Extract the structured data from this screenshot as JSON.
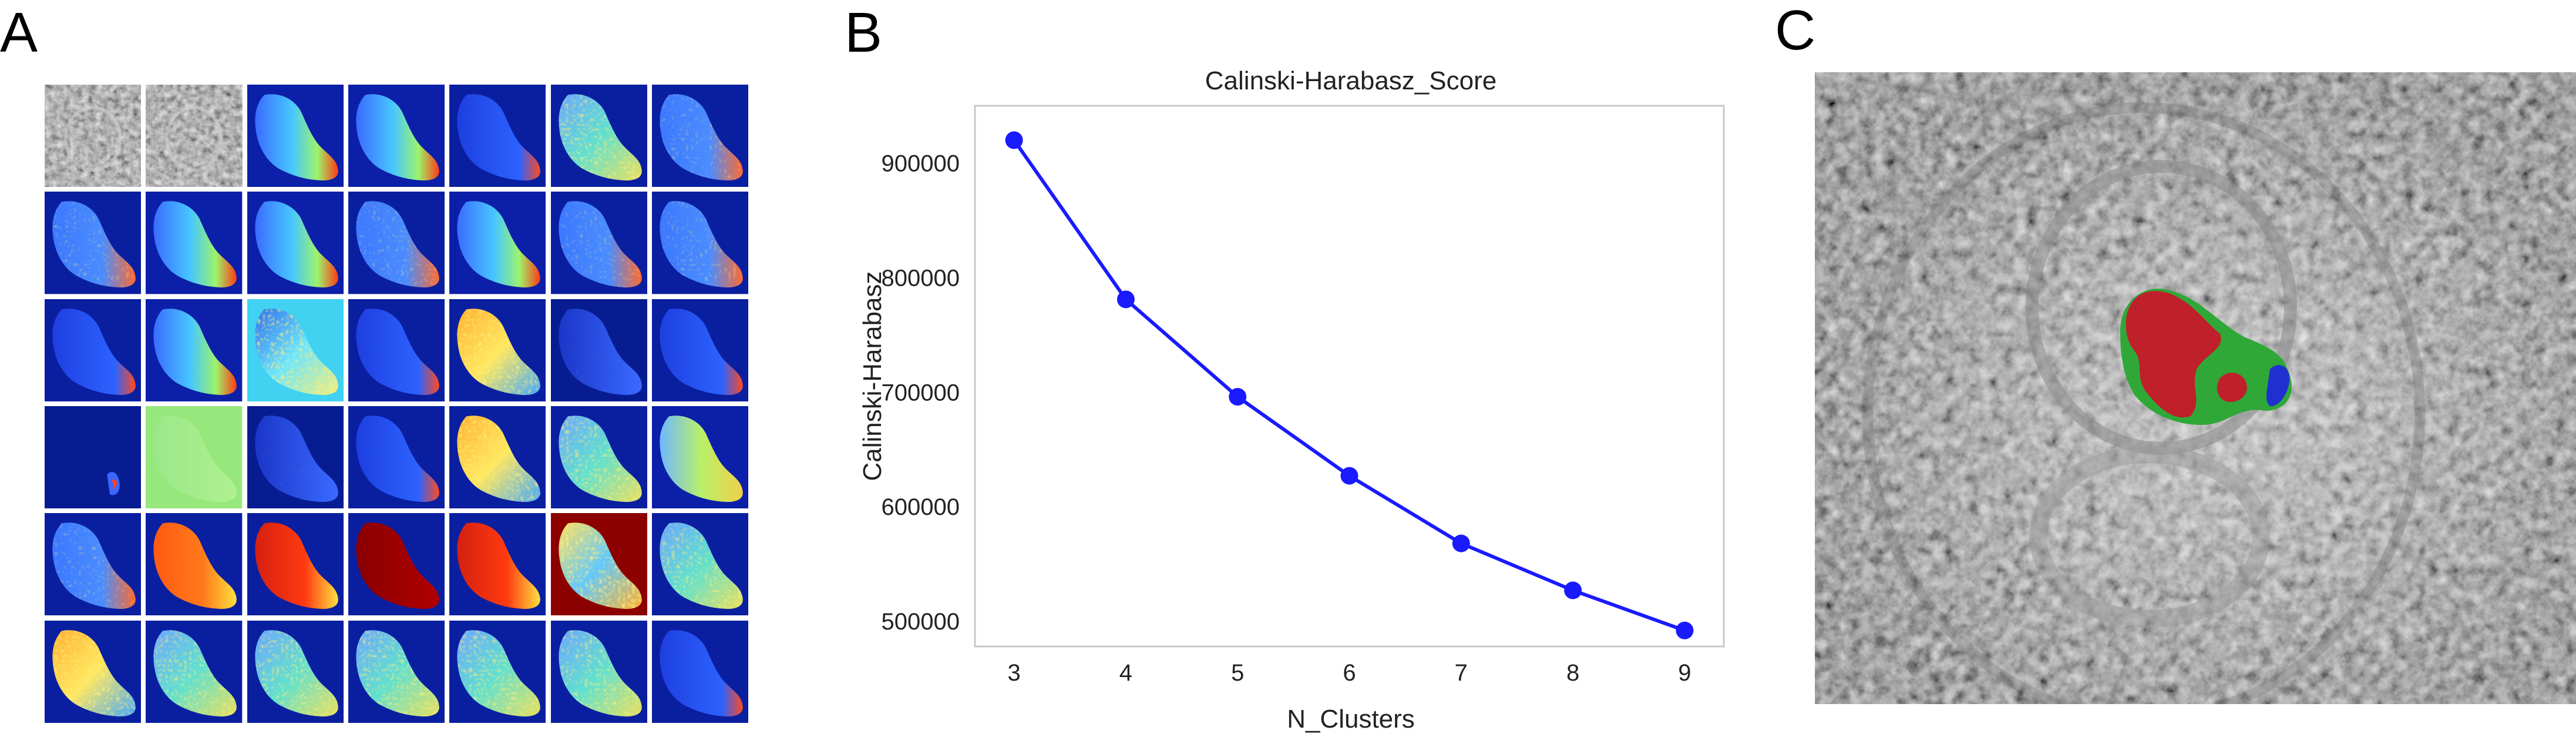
{
  "panels": {
    "a": {
      "letter": "A"
    },
    "b": {
      "letter": "B"
    },
    "c": {
      "letter": "C"
    }
  },
  "panel_a": {
    "rows": 6,
    "cols": 7,
    "tiles": [
      "mri-gray",
      "mri-gray",
      "cool",
      "cool",
      "deep-blue",
      "speckle-cyan",
      "blue-speckle",
      "blue-speckle",
      "cool",
      "cool",
      "blue-speckle",
      "cool",
      "blue-speckle",
      "blue-speckle",
      "deep-blue",
      "cool",
      "cyan-bg",
      "deep-blue",
      "speckle-yellow",
      "dark-navy",
      "deep-blue",
      "sliver",
      "green-bg",
      "dark-navy",
      "deep-blue",
      "speckle-yellow",
      "speckle-cyan",
      "cool-yellow",
      "blue-speckle",
      "hot-orange",
      "hot-red",
      "dark-red",
      "hot-red",
      "red-bg-speckle",
      "speckle-cyan",
      "speckle-yellow",
      "speckle-cyan",
      "speckle-cyan",
      "speckle-cyan",
      "speckle-cyan",
      "speckle-cyan",
      "deep-blue"
    ]
  },
  "chart_data": {
    "type": "line",
    "title": "Calinski-Harabasz_Score",
    "xlabel": "N_Clusters",
    "ylabel": "Calinski-Harabasz",
    "x": [
      3,
      4,
      5,
      6,
      7,
      8,
      9
    ],
    "series": [
      {
        "values": [
          920000,
          781000,
          696000,
          627000,
          568000,
          527000,
          492000
        ],
        "color": "#1a1aff"
      }
    ],
    "xticks": [
      "3",
      "4",
      "5",
      "6",
      "7",
      "8",
      "9"
    ],
    "yticks": [
      "500000",
      "600000",
      "700000",
      "800000",
      "900000"
    ],
    "yticks_values": [
      500000,
      600000,
      700000,
      800000,
      900000
    ],
    "xlim": [
      2.65,
      9.35
    ],
    "ylim": [
      478000,
      950000
    ],
    "grid": false
  },
  "panel_c": {
    "segmentation_colors": {
      "primary": "#c0202a",
      "secondary": "#2fa838",
      "tertiary": "#2030d0"
    }
  }
}
